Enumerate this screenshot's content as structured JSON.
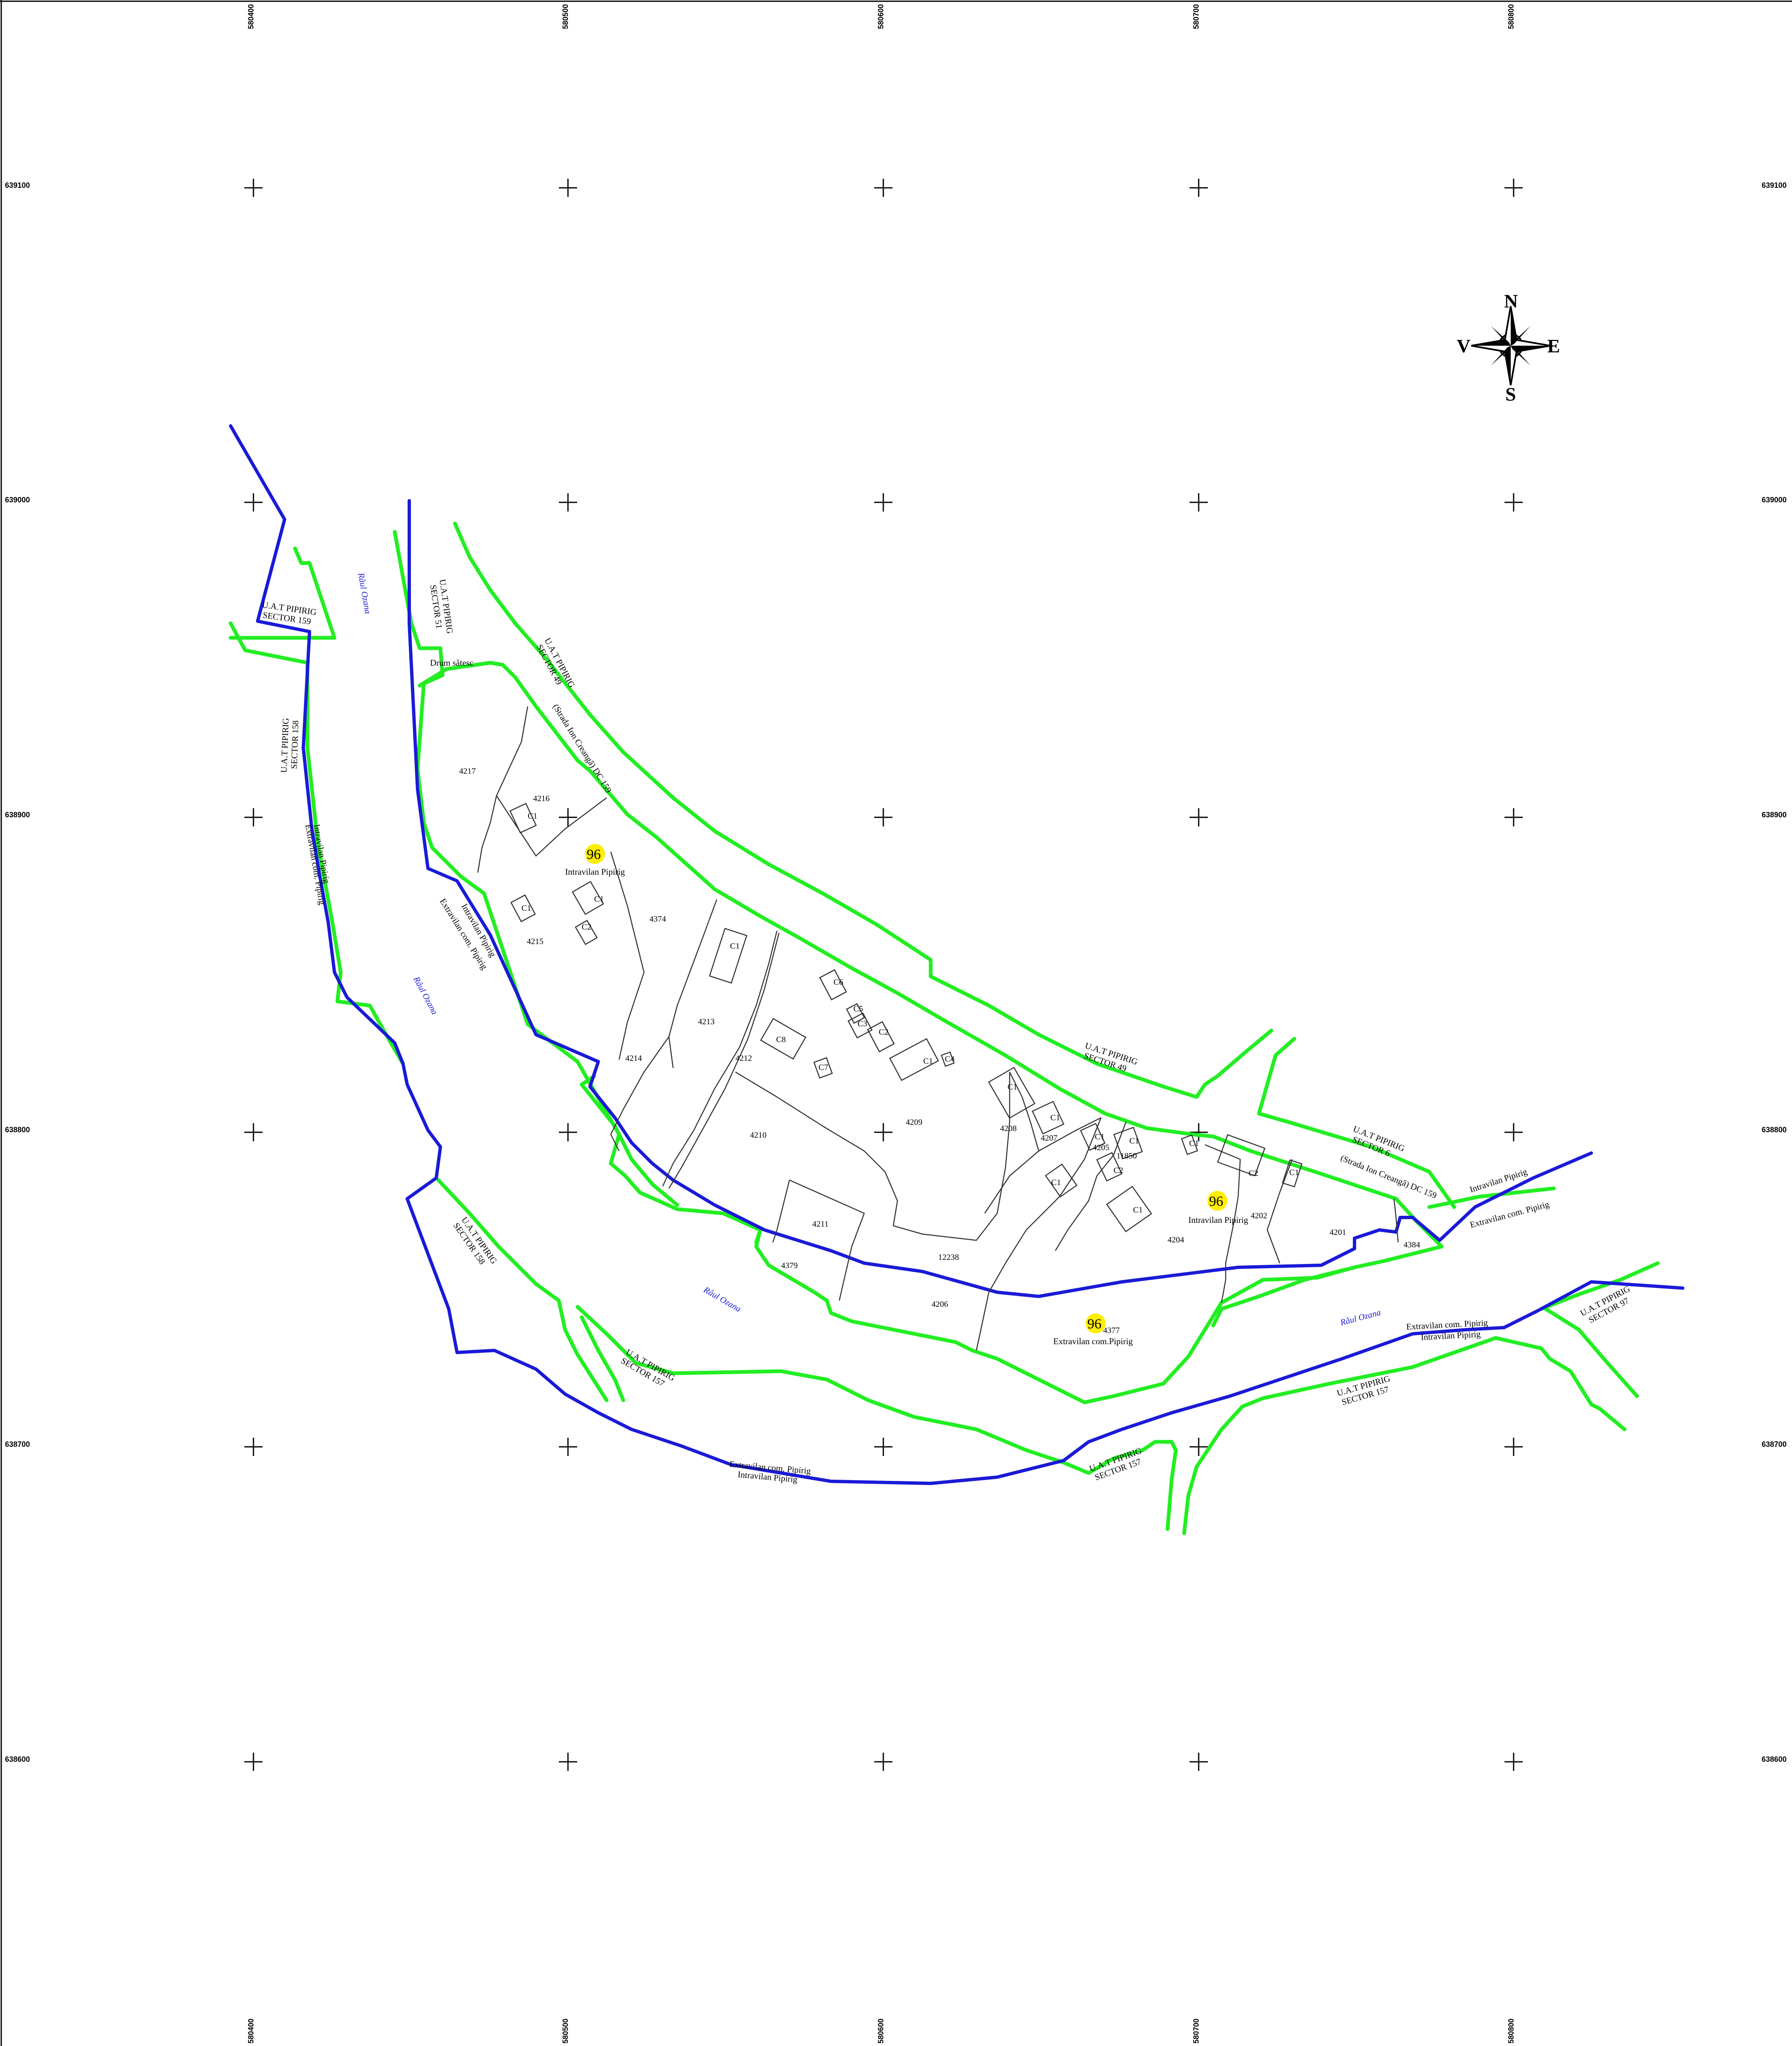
{
  "colors": {
    "boundary_green": "#22ee22",
    "boundary_blue": "#1a1ad8",
    "sector_marker": "#ffee00",
    "parcel_line": "#333333"
  },
  "grid": {
    "x_labels": [
      "580400",
      "580500",
      "580600",
      "580700",
      "580800"
    ],
    "y_labels": [
      "639100",
      "639000",
      "638900",
      "638800",
      "638700",
      "638600"
    ]
  },
  "compass": {
    "n": "N",
    "s": "S",
    "e": "E",
    "w": "V"
  },
  "sector_markers": [
    "96",
    "96",
    "96"
  ],
  "labels": {
    "uat_sector_159": [
      "U.A.T PIPIRIG",
      "SECTOR 159"
    ],
    "uat_sector_158_left": [
      "U.A.T PIPIRIG",
      "SECTOR 158"
    ],
    "uat_sector_51": [
      "U.A.T PIPIRIG",
      "SECTOR 51"
    ],
    "uat_sector_49_top": [
      "U.A.T PIPIRIG",
      "SECTOR 49"
    ],
    "strada_top": "(Strada Ion Creangă) DC 159",
    "drum_satesc": "Drum sătesc",
    "intravilan_pipirig_1": "Intravilan Pipirig",
    "intravilan_pipirig_2": "Intravilan Pipirig",
    "extravilan_pipirig_3": "Extravilan com.Pipirig",
    "intravilan_left_a": "Intravilan Pipirig",
    "extravilan_left_a": "Extravilan com. Pipirig",
    "intravilan_left_b": "Intravilan Pipirig",
    "extravilan_left_b": "Extravilan com. Pipirig",
    "uat_sector_49_mid": [
      "U.A.T PIPIRIG",
      "SECTOR 49"
    ],
    "uat_sector_6": [
      "U.A.T PIPIRIG",
      "SECTOR 6"
    ],
    "strada_right": "(Strada Ion Creangă) DC 159",
    "intravilan_right": "Intravilan Pipirig",
    "extravilan_right": "Extravilan com. Pipirig",
    "uat_sector_158_bottom": [
      "U.A.T PIPIRIG",
      "SECTOR 158"
    ],
    "uat_sector_157_a": [
      "U.A.T PIPIRIG",
      "SECTOR 157"
    ],
    "uat_sector_157_b": [
      "U.A.T PIPIRIG",
      "SECTOR 157"
    ],
    "uat_sector_157_c": [
      "U.A.T PIPIRIG",
      "SECTOR 157"
    ],
    "uat_sector_97": [
      "U.A.T PIPIRIG",
      "SECTOR 97"
    ],
    "extravilan_bottom": "Extravilan com. Pipirig",
    "intravilan_bottom": "Intravilan Pipirig",
    "extravilan_br": "Extravilan com. Pipirig",
    "intravilan_br": "Intravilan Pipirig"
  },
  "river_labels": [
    "Râul Ozana",
    "Râul Ozana",
    "Râul Ozana",
    "Râul Ozana"
  ],
  "parcels": {
    "p4217": "4217",
    "p4216": "4216",
    "p4215": "4215",
    "p4374": "4374",
    "p4213": "4213",
    "p4214": "4214",
    "p4212": "4212",
    "p4210": "4210",
    "p4209": "4209",
    "p4211": "4211",
    "p4379": "4379",
    "p12238": "12238",
    "p4206": "4206",
    "p4208": "4208",
    "p4207": "4207",
    "p4205": "4205",
    "p11850": "11850",
    "p4204": "4204",
    "p4202": "4202",
    "p4201": "4201",
    "p4384": "4384",
    "p4377": "4377"
  },
  "buildings": {
    "b1": "C1",
    "b2": "C1",
    "b3": "C1",
    "b4": "C2",
    "b5": "C1",
    "b6": "C6",
    "b7": "C5",
    "b8": "C3",
    "b9": "C2",
    "b10": "C8",
    "b11": "C7",
    "b12": "C1",
    "b13": "C4",
    "b14": "C1",
    "b15": "C1",
    "b16": "C1",
    "b17": "C1",
    "b18": "C1",
    "b19": "C2",
    "b20": "C1",
    "b21": "C1",
    "b22": "C2",
    "b23": "C1",
    "b24": "C2"
  }
}
